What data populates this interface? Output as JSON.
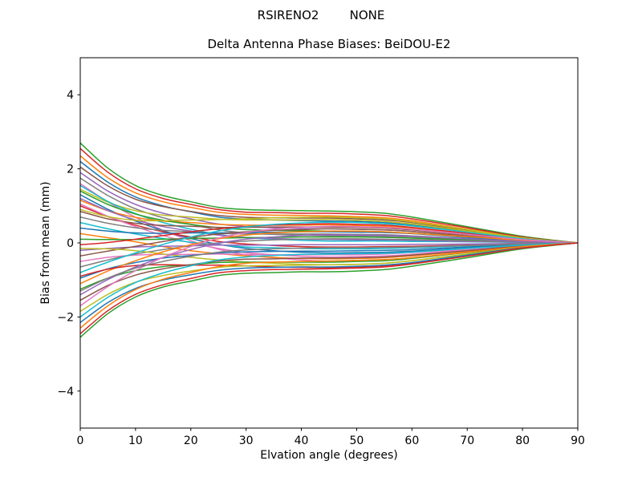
{
  "figure": {
    "suptitle": "RSIRENO2        NONE",
    "title": "Delta Antenna Phase Biases: BeiDOU-E2",
    "background": "#ffffff"
  },
  "axes": {
    "xlabel": "Elvation angle (degrees)",
    "ylabel": "Bias from mean (mm)",
    "xlim": [
      0,
      90
    ],
    "ylim": [
      -5,
      5
    ],
    "xticks": [
      0,
      10,
      20,
      30,
      40,
      50,
      60,
      70,
      80,
      90
    ],
    "yticks": [
      -4,
      -2,
      0,
      2,
      4
    ],
    "grid": false,
    "spine_color": "#000000"
  },
  "chart_data": {
    "type": "line",
    "xlabel": "Elvation angle (degrees)",
    "ylabel": "Bias from mean (mm)",
    "title": "Delta Antenna Phase Biases: BeiDOU-E2",
    "x": [
      0,
      5,
      10,
      15,
      20,
      25,
      30,
      35,
      40,
      45,
      50,
      55,
      60,
      70,
      80,
      90
    ],
    "palette": [
      "#1f77b4",
      "#ff7f0e",
      "#2ca02c",
      "#d62728",
      "#9467bd",
      "#8c564b",
      "#e377c2",
      "#7f7f7f",
      "#bcbd22",
      "#17becf"
    ],
    "line_width": 1.5,
    "series": [
      {
        "color": "#1f77b4",
        "y": [
          2.2,
          1.64,
          1.24,
          1.0,
          0.84,
          0.7,
          0.64,
          0.62,
          0.6,
          0.59,
          0.58,
          0.55,
          0.48,
          0.3,
          0.12,
          0
        ]
      },
      {
        "color": "#ff7f0e",
        "y": [
          2.35,
          1.76,
          1.35,
          1.11,
          0.96,
          0.83,
          0.77,
          0.75,
          0.74,
          0.73,
          0.71,
          0.68,
          0.6,
          0.37,
          0.15,
          0
        ]
      },
      {
        "color": "#2ca02c",
        "y": [
          2.7,
          2.02,
          1.55,
          1.28,
          1.11,
          0.96,
          0.9,
          0.88,
          0.87,
          0.86,
          0.84,
          0.8,
          0.7,
          0.44,
          0.18,
          0
        ]
      },
      {
        "color": "#d62728",
        "y": [
          2.55,
          1.91,
          1.46,
          1.2,
          1.04,
          0.9,
          0.83,
          0.82,
          0.8,
          0.8,
          0.78,
          0.74,
          0.65,
          0.41,
          0.16,
          0
        ]
      },
      {
        "color": "#9467bd",
        "y": [
          1.9,
          1.4,
          1.04,
          0.8,
          0.65,
          0.51,
          0.44,
          0.41,
          0.39,
          0.38,
          0.37,
          0.35,
          0.31,
          0.19,
          0.08,
          0
        ]
      },
      {
        "color": "#8c564b",
        "y": [
          2.05,
          1.54,
          1.18,
          0.98,
          0.85,
          0.74,
          0.69,
          0.68,
          0.67,
          0.67,
          0.65,
          0.62,
          0.55,
          0.34,
          0.14,
          0
        ]
      },
      {
        "color": "#e377c2",
        "y": [
          1.6,
          1.11,
          0.69,
          0.34,
          0.06,
          -0.17,
          -0.32,
          -0.4,
          -0.46,
          -0.49,
          -0.47,
          -0.45,
          -0.4,
          -0.25,
          -0.1,
          0
        ]
      },
      {
        "color": "#7f7f7f",
        "y": [
          1.75,
          1.28,
          0.92,
          0.68,
          0.5,
          0.35,
          0.27,
          0.23,
          0.21,
          0.19,
          0.19,
          0.18,
          0.16,
          0.1,
          0.04,
          0
        ]
      },
      {
        "color": "#bcbd22",
        "y": [
          1.45,
          1.1,
          0.87,
          0.75,
          0.7,
          0.64,
          0.62,
          0.62,
          0.62,
          0.63,
          0.61,
          0.58,
          0.51,
          0.32,
          0.13,
          0
        ]
      },
      {
        "color": "#17becf",
        "y": [
          1.55,
          1.12,
          0.79,
          0.55,
          0.37,
          0.23,
          0.14,
          0.1,
          0.07,
          0.05,
          0.05,
          0.05,
          0.04,
          0.03,
          0.01,
          0
        ]
      },
      {
        "color": "#1f77b4",
        "y": [
          1.3,
          0.91,
          0.59,
          0.33,
          0.12,
          -0.04,
          -0.15,
          -0.21,
          -0.25,
          -0.27,
          -0.26,
          -0.25,
          -0.22,
          -0.14,
          -0.06,
          0
        ]
      },
      {
        "color": "#ff7f0e",
        "y": [
          1.15,
          0.87,
          0.69,
          0.59,
          0.55,
          0.5,
          0.48,
          0.48,
          0.48,
          0.49,
          0.47,
          0.45,
          0.4,
          0.25,
          0.1,
          0
        ]
      },
      {
        "color": "#2ca02c",
        "y": [
          1.4,
          1.04,
          0.78,
          0.61,
          0.5,
          0.41,
          0.36,
          0.34,
          0.33,
          0.32,
          0.32,
          0.3,
          0.26,
          0.17,
          0.07,
          0
        ]
      },
      {
        "color": "#d62728",
        "y": [
          1.0,
          0.71,
          0.48,
          0.3,
          0.16,
          0.04,
          -0.03,
          -0.07,
          -0.1,
          -0.11,
          -0.11,
          -0.1,
          -0.09,
          -0.06,
          -0.02,
          0
        ]
      },
      {
        "color": "#9467bd",
        "y": [
          1.2,
          0.87,
          0.62,
          0.44,
          0.32,
          0.21,
          0.15,
          0.12,
          0.1,
          0.09,
          0.08,
          0.08,
          0.07,
          0.04,
          0.02,
          0
        ]
      },
      {
        "color": "#8c564b",
        "y": [
          0.85,
          0.65,
          0.53,
          0.47,
          0.45,
          0.42,
          0.42,
          0.43,
          0.43,
          0.43,
          0.42,
          0.4,
          0.35,
          0.22,
          0.09,
          0
        ]
      },
      {
        "color": "#e377c2",
        "y": [
          1.05,
          0.72,
          0.44,
          0.2,
          0.0,
          -0.15,
          -0.26,
          -0.32,
          -0.36,
          -0.38,
          -0.37,
          -0.35,
          -0.31,
          -0.19,
          -0.08,
          0
        ]
      },
      {
        "color": "#7f7f7f",
        "y": [
          0.7,
          0.53,
          0.41,
          0.34,
          0.3,
          0.26,
          0.24,
          0.24,
          0.24,
          0.24,
          0.23,
          0.22,
          0.19,
          0.12,
          0.05,
          0
        ]
      },
      {
        "color": "#bcbd22",
        "y": [
          0.9,
          0.71,
          0.61,
          0.6,
          0.62,
          0.63,
          0.65,
          0.68,
          0.69,
          0.7,
          0.68,
          0.65,
          0.57,
          0.36,
          0.14,
          0
        ]
      },
      {
        "color": "#17becf",
        "y": [
          0.55,
          0.38,
          0.24,
          0.12,
          0.02,
          -0.05,
          -0.11,
          -0.13,
          -0.15,
          -0.16,
          -0.16,
          -0.15,
          -0.13,
          -0.08,
          -0.03,
          0
        ]
      },
      {
        "color": "#1f77b4",
        "y": [
          0.4,
          0.32,
          0.27,
          0.26,
          0.27,
          0.27,
          0.28,
          0.29,
          0.3,
          0.3,
          0.29,
          0.28,
          0.25,
          0.15,
          0.06,
          0
        ]
      },
      {
        "color": "#ff7f0e",
        "y": [
          0.25,
          0.14,
          0.03,
          -0.1,
          -0.21,
          -0.29,
          -0.35,
          -0.39,
          -0.42,
          -0.43,
          -0.42,
          -0.4,
          -0.35,
          -0.22,
          -0.09,
          0
        ]
      },
      {
        "color": "#2ca02c",
        "y": [
          0.1,
          0.09,
          0.09,
          0.1,
          0.12,
          0.13,
          0.14,
          0.15,
          0.16,
          0.16,
          0.16,
          0.15,
          0.13,
          0.08,
          0.03,
          0
        ]
      },
      {
        "color": "#d62728",
        "y": [
          -0.05,
          0.01,
          0.1,
          0.2,
          0.3,
          0.38,
          0.44,
          0.48,
          0.5,
          0.52,
          0.5,
          0.48,
          0.42,
          0.26,
          0.11,
          0
        ]
      },
      {
        "color": "#9467bd",
        "y": [
          -0.2,
          -0.15,
          -0.11,
          -0.09,
          -0.08,
          -0.06,
          -0.06,
          -0.06,
          -0.05,
          -0.05,
          -0.05,
          -0.05,
          -0.04,
          -0.03,
          -0.01,
          0
        ]
      },
      {
        "color": "#8c564b",
        "y": [
          -0.35,
          -0.22,
          -0.09,
          0.04,
          0.15,
          0.24,
          0.3,
          0.34,
          0.36,
          0.38,
          0.37,
          0.35,
          0.31,
          0.19,
          0.08,
          0
        ]
      },
      {
        "color": "#e377c2",
        "y": [
          -0.5,
          -0.39,
          -0.33,
          -0.31,
          -0.31,
          -0.3,
          -0.31,
          -0.32,
          -0.32,
          -0.32,
          -0.32,
          -0.3,
          -0.26,
          -0.17,
          -0.07,
          0
        ]
      },
      {
        "color": "#7f7f7f",
        "y": [
          -0.65,
          -0.46,
          -0.3,
          -0.18,
          -0.08,
          0.0,
          0.05,
          0.08,
          0.1,
          0.11,
          0.11,
          0.1,
          0.09,
          0.06,
          0.02,
          0
        ]
      },
      {
        "color": "#bcbd22",
        "y": [
          -0.15,
          -0.16,
          -0.21,
          -0.3,
          -0.39,
          -0.46,
          -0.52,
          -0.55,
          -0.58,
          -0.59,
          -0.58,
          -0.55,
          -0.48,
          -0.3,
          -0.12,
          0
        ]
      },
      {
        "color": "#17becf",
        "y": [
          -0.8,
          -0.52,
          -0.27,
          -0.04,
          0.16,
          0.32,
          0.43,
          0.5,
          0.54,
          0.56,
          0.55,
          0.52,
          0.46,
          0.29,
          0.11,
          0
        ]
      },
      {
        "color": "#1f77b4",
        "y": [
          -0.95,
          -0.7,
          -0.53,
          -0.41,
          -0.34,
          -0.27,
          -0.24,
          -0.23,
          -0.22,
          -0.22,
          -0.21,
          -0.2,
          -0.18,
          -0.11,
          -0.04,
          0
        ]
      },
      {
        "color": "#ff7f0e",
        "y": [
          -1.1,
          -0.76,
          -0.48,
          -0.24,
          -0.05,
          0.11,
          0.21,
          0.27,
          0.3,
          0.32,
          0.32,
          0.3,
          0.26,
          0.17,
          0.07,
          0
        ]
      },
      {
        "color": "#2ca02c",
        "y": [
          -1.25,
          -0.95,
          -0.75,
          -0.64,
          -0.59,
          -0.53,
          -0.52,
          -0.52,
          -0.52,
          -0.52,
          -0.5,
          -0.48,
          -0.42,
          -0.26,
          -0.11,
          0
        ]
      },
      {
        "color": "#d62728",
        "y": [
          -0.9,
          -0.71,
          -0.61,
          -0.59,
          -0.6,
          -0.6,
          -0.62,
          -0.65,
          -0.66,
          -0.67,
          -0.65,
          -0.62,
          -0.55,
          -0.34,
          -0.14,
          0
        ]
      },
      {
        "color": "#9467bd",
        "y": [
          -1.4,
          -0.99,
          -0.65,
          -0.39,
          -0.18,
          -0.01,
          0.1,
          0.16,
          0.2,
          0.22,
          0.21,
          0.2,
          0.18,
          0.11,
          0.04,
          0
        ]
      },
      {
        "color": "#8c564b",
        "y": [
          -1.55,
          -1.15,
          -0.87,
          -0.7,
          -0.59,
          -0.49,
          -0.44,
          -0.43,
          -0.41,
          -0.41,
          -0.4,
          -0.38,
          -0.33,
          -0.21,
          -0.08,
          0
        ]
      },
      {
        "color": "#e377c2",
        "y": [
          -1.7,
          -1.18,
          -0.75,
          -0.39,
          -0.1,
          0.13,
          0.28,
          0.37,
          0.42,
          0.45,
          0.44,
          0.42,
          0.37,
          0.23,
          0.09,
          0
        ]
      },
      {
        "color": "#7f7f7f",
        "y": [
          -1.3,
          -0.95,
          -0.68,
          -0.5,
          -0.36,
          -0.25,
          -0.19,
          -0.16,
          -0.14,
          -0.13,
          -0.13,
          -0.12,
          -0.11,
          -0.07,
          -0.03,
          0
        ]
      },
      {
        "color": "#bcbd22",
        "y": [
          -1.85,
          -1.39,
          -1.06,
          -0.88,
          -0.76,
          -0.66,
          -0.62,
          -0.61,
          -0.6,
          -0.59,
          -0.58,
          -0.55,
          -0.48,
          -0.3,
          -0.12,
          0
        ]
      },
      {
        "color": "#17becf",
        "y": [
          -2.0,
          -1.47,
          -1.07,
          -0.81,
          -0.62,
          -0.46,
          -0.38,
          -0.34,
          -0.31,
          -0.3,
          -0.29,
          -0.28,
          -0.25,
          -0.15,
          -0.06,
          0
        ]
      },
      {
        "color": "#1f77b4",
        "y": [
          -2.15,
          -1.61,
          -1.23,
          -1.0,
          -0.86,
          -0.74,
          -0.68,
          -0.66,
          -0.65,
          -0.65,
          -0.63,
          -0.6,
          -0.53,
          -0.33,
          -0.13,
          0
        ]
      },
      {
        "color": "#ff7f0e",
        "y": [
          -2.3,
          -1.7,
          -1.26,
          -0.98,
          -0.8,
          -0.64,
          -0.55,
          -0.52,
          -0.5,
          -0.49,
          -0.47,
          -0.45,
          -0.4,
          -0.25,
          -0.1,
          0
        ]
      },
      {
        "color": "#2ca02c",
        "y": [
          -2.55,
          -1.91,
          -1.46,
          -1.19,
          -1.03,
          -0.88,
          -0.82,
          -0.8,
          -0.78,
          -0.78,
          -0.76,
          -0.72,
          -0.63,
          -0.4,
          -0.16,
          0
        ]
      },
      {
        "color": "#d62728",
        "y": [
          -2.45,
          -1.83,
          -1.39,
          -1.13,
          -0.96,
          -0.81,
          -0.75,
          -0.72,
          -0.71,
          -0.7,
          -0.68,
          -0.65,
          -0.57,
          -0.36,
          -0.14,
          0
        ]
      }
    ]
  }
}
